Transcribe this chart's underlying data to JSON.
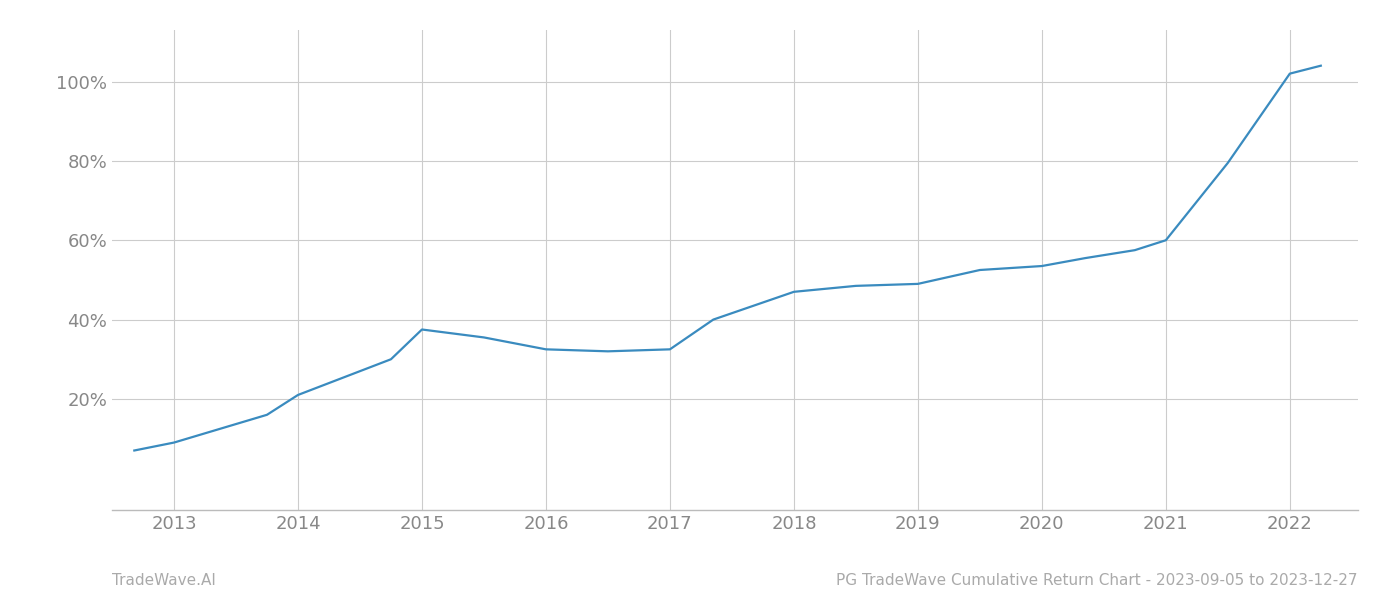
{
  "x_years": [
    2012.68,
    2013.0,
    2013.75,
    2014.0,
    2014.75,
    2015.0,
    2015.5,
    2016.0,
    2016.5,
    2017.0,
    2017.35,
    2018.0,
    2018.5,
    2019.0,
    2019.5,
    2020.0,
    2020.35,
    2020.75,
    2021.0,
    2021.5,
    2022.0,
    2022.25
  ],
  "y_values": [
    0.07,
    0.09,
    0.16,
    0.21,
    0.3,
    0.375,
    0.355,
    0.325,
    0.32,
    0.325,
    0.4,
    0.47,
    0.485,
    0.49,
    0.525,
    0.535,
    0.555,
    0.575,
    0.6,
    0.795,
    1.02,
    1.04
  ],
  "line_color": "#3a8bbf",
  "line_width": 1.6,
  "background_color": "#ffffff",
  "grid_color": "#cccccc",
  "yticks": [
    0.2,
    0.4,
    0.6,
    0.8,
    1.0
  ],
  "ytick_labels": [
    "20%",
    "40%",
    "60%",
    "80%",
    "100%"
  ],
  "xticks": [
    2013,
    2014,
    2015,
    2016,
    2017,
    2018,
    2019,
    2020,
    2021,
    2022
  ],
  "xlim": [
    2012.5,
    2022.55
  ],
  "ylim": [
    -0.08,
    1.13
  ],
  "footer_left": "TradeWave.AI",
  "footer_right": "PG TradeWave Cumulative Return Chart - 2023-09-05 to 2023-12-27",
  "footer_color": "#aaaaaa",
  "footer_fontsize": 11,
  "tick_label_color": "#888888",
  "tick_label_fontsize": 13,
  "spine_color": "#bbbbbb"
}
